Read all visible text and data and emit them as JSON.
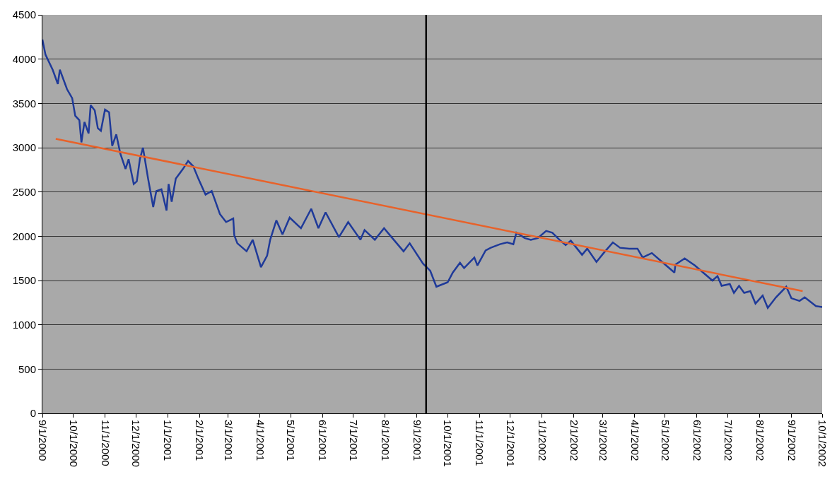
{
  "chart_data": {
    "type": "line",
    "xlim": [
      "2000-09-01",
      "2002-10-01"
    ],
    "ylim": [
      0,
      4500
    ],
    "yticks": [
      0,
      500,
      1000,
      1500,
      2000,
      2500,
      3000,
      3500,
      4000,
      4500
    ],
    "xticks": [
      {
        "value": "2000-09-01",
        "label": "9/1/2000"
      },
      {
        "value": "2000-10-01",
        "label": "10/1/2000"
      },
      {
        "value": "2000-11-01",
        "label": "11/1/2000"
      },
      {
        "value": "2000-12-01",
        "label": "12/1/2000"
      },
      {
        "value": "2001-01-01",
        "label": "1/1/2001"
      },
      {
        "value": "2001-02-01",
        "label": "2/1/2001"
      },
      {
        "value": "2001-03-01",
        "label": "3/1/2001"
      },
      {
        "value": "2001-04-01",
        "label": "4/1/2001"
      },
      {
        "value": "2001-05-01",
        "label": "5/1/2001"
      },
      {
        "value": "2001-06-01",
        "label": "6/1/2001"
      },
      {
        "value": "2001-07-01",
        "label": "7/1/2001"
      },
      {
        "value": "2001-08-01",
        "label": "8/1/2001"
      },
      {
        "value": "2001-09-01",
        "label": "9/1/2001"
      },
      {
        "value": "2001-10-01",
        "label": "10/1/2001"
      },
      {
        "value": "2001-11-01",
        "label": "11/1/2001"
      },
      {
        "value": "2001-12-01",
        "label": "12/1/2001"
      },
      {
        "value": "2002-01-01",
        "label": "1/1/2002"
      },
      {
        "value": "2002-02-01",
        "label": "2/1/2002"
      },
      {
        "value": "2002-03-01",
        "label": "3/1/2002"
      },
      {
        "value": "2002-04-01",
        "label": "4/1/2002"
      },
      {
        "value": "2002-05-01",
        "label": "5/1/2002"
      },
      {
        "value": "2002-06-01",
        "label": "6/1/2002"
      },
      {
        "value": "2002-07-01",
        "label": "7/1/2002"
      },
      {
        "value": "2002-08-01",
        "label": "8/1/2002"
      },
      {
        "value": "2002-09-01",
        "label": "9/1/2002"
      },
      {
        "value": "2002-10-01",
        "label": "10/1/2002"
      }
    ],
    "grid": "y",
    "marker": "none",
    "line_style": "solid",
    "ref_lines": [
      {
        "axis": "x",
        "value": "2001-09-10",
        "color": "#000000"
      }
    ],
    "series": [
      {
        "color": "#1f3a99",
        "x": [
          "2000-09-01",
          "2000-09-04",
          "2000-09-11",
          "2000-09-16",
          "2000-09-18",
          "2000-09-25",
          "2000-09-30",
          "2000-10-03",
          "2000-10-07",
          "2000-10-09",
          "2000-10-12",
          "2000-10-16",
          "2000-10-18",
          "2000-10-22",
          "2000-10-25",
          "2000-10-28",
          "2000-11-01",
          "2000-11-05",
          "2000-11-08",
          "2000-11-12",
          "2000-11-16",
          "2000-11-21",
          "2000-11-24",
          "2000-11-29",
          "2000-12-02",
          "2000-12-05",
          "2000-12-08",
          "2000-12-13",
          "2000-12-18",
          "2000-12-21",
          "2000-12-26",
          "2000-12-31",
          "2001-01-02",
          "2001-01-05",
          "2001-01-09",
          "2001-01-16",
          "2001-01-21",
          "2001-01-26",
          "2001-01-31",
          "2001-02-07",
          "2001-02-13",
          "2001-02-21",
          "2001-02-27",
          "2001-03-06",
          "2001-03-07",
          "2001-03-10",
          "2001-03-19",
          "2001-03-25",
          "2001-04-02",
          "2001-04-08",
          "2001-04-11",
          "2001-04-17",
          "2001-04-23",
          "2001-04-30",
          "2001-05-11",
          "2001-05-21",
          "2001-05-28",
          "2001-06-04",
          "2001-06-17",
          "2001-06-26",
          "2001-07-08",
          "2001-07-12",
          "2001-07-22",
          "2001-07-31",
          "2001-08-08",
          "2001-08-19",
          "2001-08-25",
          "2001-09-07",
          "2001-09-14",
          "2001-09-20",
          "2001-10-01",
          "2001-10-06",
          "2001-10-13",
          "2001-10-17",
          "2001-10-27",
          "2001-10-30",
          "2001-11-07",
          "2001-11-12",
          "2001-11-21",
          "2001-11-28",
          "2001-12-04",
          "2001-12-07",
          "2001-12-15",
          "2001-12-21",
          "2001-12-28",
          "2002-01-05",
          "2002-01-11",
          "2002-01-18",
          "2002-01-24",
          "2002-01-29",
          "2002-02-09",
          "2002-02-14",
          "2002-02-23",
          "2002-03-02",
          "2002-03-11",
          "2002-03-18",
          "2002-03-27",
          "2002-04-04",
          "2002-04-09",
          "2002-04-18",
          "2002-04-28",
          "2002-05-10",
          "2002-05-11",
          "2002-05-20",
          "2002-05-30",
          "2002-06-08",
          "2002-06-16",
          "2002-06-21",
          "2002-06-25",
          "2002-07-03",
          "2002-07-07",
          "2002-07-12",
          "2002-07-17",
          "2002-07-23",
          "2002-07-28",
          "2002-08-04",
          "2002-08-09",
          "2002-08-17",
          "2002-08-27",
          "2002-09-01",
          "2002-09-09",
          "2002-09-14",
          "2002-09-25",
          "2002-10-01"
        ],
        "values": [
          4220,
          4050,
          3880,
          3720,
          3880,
          3660,
          3560,
          3360,
          3310,
          3060,
          3290,
          3160,
          3480,
          3420,
          3220,
          3190,
          3430,
          3400,
          3020,
          3150,
          2930,
          2760,
          2870,
          2590,
          2620,
          2870,
          3000,
          2650,
          2330,
          2510,
          2530,
          2290,
          2590,
          2390,
          2650,
          2760,
          2850,
          2790,
          2650,
          2470,
          2510,
          2250,
          2160,
          2200,
          2010,
          1920,
          1830,
          1960,
          1650,
          1780,
          1960,
          2180,
          2020,
          2210,
          2090,
          2310,
          2090,
          2270,
          1990,
          2160,
          1960,
          2070,
          1960,
          2090,
          1980,
          1830,
          1920,
          1690,
          1610,
          1430,
          1480,
          1590,
          1700,
          1640,
          1760,
          1670,
          1840,
          1870,
          1910,
          1930,
          1910,
          2040,
          1980,
          1960,
          1980,
          2060,
          2040,
          1960,
          1900,
          1950,
          1790,
          1860,
          1710,
          1810,
          1930,
          1870,
          1860,
          1860,
          1760,
          1810,
          1710,
          1590,
          1680,
          1750,
          1670,
          1580,
          1500,
          1550,
          1440,
          1460,
          1360,
          1440,
          1360,
          1380,
          1240,
          1330,
          1190,
          1310,
          1430,
          1300,
          1270,
          1310,
          1210,
          1200
        ]
      },
      {
        "color": "#e8622a",
        "x": [
          "2000-09-14",
          "2002-09-12"
        ],
        "values": [
          3100,
          1380
        ]
      }
    ]
  }
}
